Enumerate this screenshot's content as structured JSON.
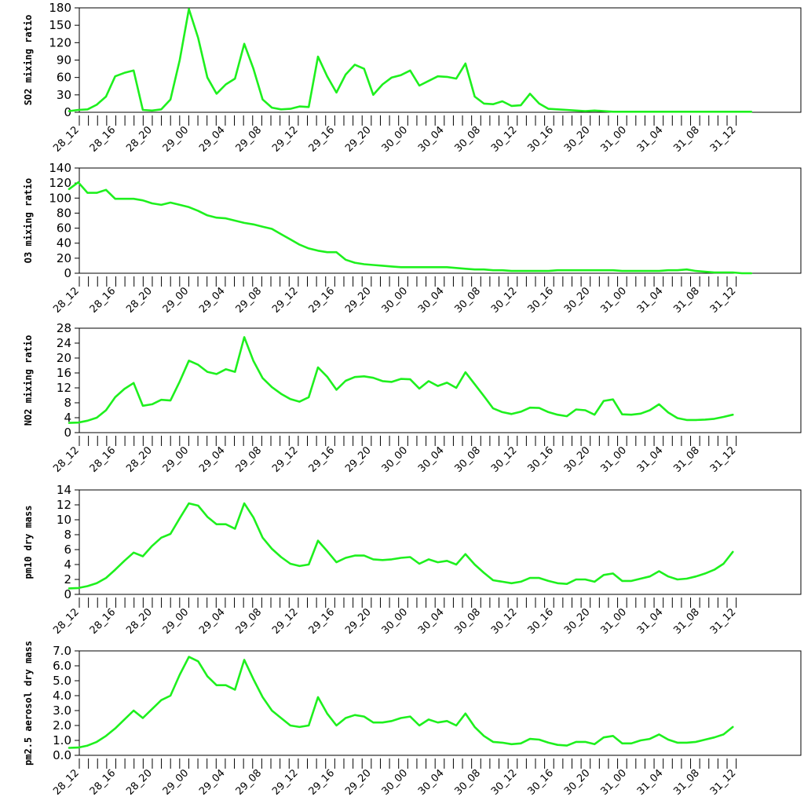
{
  "chart_data": [
    {
      "type": "line",
      "ylabel": "SO2 mixing ratio",
      "ylim": [
        0,
        180
      ],
      "yticks": [
        "0",
        "30",
        "60",
        "90",
        "120",
        "150",
        "180"
      ],
      "x_tick_labels": [
        "28_12",
        "28_16",
        "28_20",
        "29_00",
        "29_04",
        "29_08",
        "29_12",
        "29_16",
        "29_20",
        "30_00",
        "30_04",
        "30_08",
        "30_12",
        "30_16",
        "30_20",
        "31_00",
        "31_04",
        "31_08",
        "31_12"
      ],
      "series": [
        {
          "color": "#1ef01e",
          "values": [
            2,
            4,
            5,
            13,
            27,
            62,
            68,
            72,
            4,
            3,
            5,
            22,
            90,
            178,
            128,
            60,
            32,
            48,
            58,
            118,
            75,
            22,
            8,
            5,
            6,
            10,
            9,
            96,
            62,
            34,
            65,
            82,
            75,
            30,
            48,
            60,
            64,
            72,
            46,
            54,
            62,
            61,
            58,
            84,
            27,
            15,
            14,
            19,
            11,
            12,
            32,
            15,
            6,
            5,
            4,
            3,
            2,
            3,
            2,
            1,
            1,
            1,
            1,
            1,
            1,
            1,
            1,
            1,
            1,
            1,
            1,
            1,
            1,
            1,
            1
          ]
        }
      ]
    },
    {
      "type": "line",
      "ylabel": "O3 mixing ratio",
      "ylim": [
        0,
        140
      ],
      "yticks": [
        "0",
        "20",
        "40",
        "60",
        "80",
        "100",
        "120",
        "140"
      ],
      "x_tick_labels": [
        "28_12",
        "28_16",
        "28_20",
        "29_00",
        "29_04",
        "29_08",
        "29_12",
        "29_16",
        "29_20",
        "30_00",
        "30_04",
        "30_08",
        "30_12",
        "30_16",
        "30_20",
        "31_00",
        "31_04",
        "31_08",
        "31_12"
      ],
      "series": [
        {
          "color": "#1ef01e",
          "values": [
            112,
            121,
            107,
            107,
            111,
            99,
            99,
            99,
            97,
            93,
            91,
            94,
            91,
            88,
            83,
            77,
            74,
            73,
            70,
            67,
            65,
            62,
            59,
            52,
            45,
            38,
            33,
            30,
            28,
            28,
            18,
            14,
            12,
            11,
            10,
            9,
            8,
            8,
            8,
            8,
            8,
            8,
            7,
            6,
            5,
            5,
            4,
            4,
            3,
            3,
            3,
            3,
            3,
            4,
            4,
            4,
            4,
            4,
            4,
            4,
            3,
            3,
            3,
            3,
            3,
            4,
            4,
            5,
            3,
            2,
            1,
            1,
            1,
            0,
            0
          ]
        }
      ]
    },
    {
      "type": "line",
      "ylabel": "NO2 mixing ratio",
      "ylim": [
        0,
        28
      ],
      "yticks": [
        "0",
        "4",
        "8",
        "12",
        "16",
        "20",
        "24",
        "28"
      ],
      "x_tick_labels": [
        "28_12",
        "28_16",
        "28_20",
        "29_00",
        "29_04",
        "29_08",
        "29_12",
        "29_16",
        "29_20",
        "30_00",
        "30_04",
        "30_08",
        "30_12",
        "30_16",
        "30_20",
        "31_00",
        "31_04",
        "31_08",
        "31_12"
      ],
      "series": [
        {
          "color": "#1ef01e",
          "values": [
            2.6,
            2.7,
            3.2,
            4.0,
            6.0,
            9.5,
            11.7,
            13.3,
            7.2,
            7.6,
            8.8,
            8.6,
            13.7,
            19.3,
            18.2,
            16.3,
            15.7,
            17.0,
            16.3,
            25.6,
            19.2,
            14.6,
            12.2,
            10.4,
            9.0,
            8.3,
            9.5,
            17.5,
            15.0,
            11.5,
            13.9,
            14.9,
            15.1,
            14.7,
            13.8,
            13.6,
            14.4,
            14.3,
            11.8,
            13.8,
            12.5,
            13.4,
            12.0,
            16.2,
            13.0,
            9.8,
            6.5,
            5.5,
            5.0,
            5.6,
            6.7,
            6.6,
            5.5,
            4.8,
            4.4,
            6.2,
            6.0,
            4.8,
            8.5,
            8.9,
            4.9,
            4.8,
            5.1,
            6.0,
            7.6,
            5.4,
            3.9,
            3.4,
            3.4,
            3.5,
            3.7,
            4.2,
            4.8
          ]
        }
      ]
    },
    {
      "type": "line",
      "ylabel": "pm10 dry mass",
      "ylim": [
        0,
        14
      ],
      "yticks": [
        "0",
        "2",
        "4",
        "6",
        "8",
        "10",
        "12",
        "14"
      ],
      "x_tick_labels": [
        "28_12",
        "28_16",
        "28_20",
        "29_00",
        "29_04",
        "29_08",
        "29_12",
        "29_16",
        "29_20",
        "30_00",
        "30_04",
        "30_08",
        "30_12",
        "30_16",
        "30_20",
        "31_00",
        "31_04",
        "31_08",
        "31_12"
      ],
      "series": [
        {
          "color": "#1ef01e",
          "values": [
            0.8,
            0.85,
            1.1,
            1.5,
            2.2,
            3.3,
            4.5,
            5.6,
            5.1,
            6.5,
            7.6,
            8.1,
            10.2,
            12.2,
            11.9,
            10.4,
            9.4,
            9.4,
            8.8,
            12.2,
            10.3,
            7.6,
            6.1,
            5.0,
            4.1,
            3.8,
            4.0,
            7.2,
            5.8,
            4.3,
            4.9,
            5.2,
            5.2,
            4.7,
            4.6,
            4.7,
            4.9,
            5.0,
            4.1,
            4.7,
            4.3,
            4.5,
            4.0,
            5.4,
            4.0,
            2.9,
            1.9,
            1.7,
            1.5,
            1.7,
            2.2,
            2.2,
            1.8,
            1.5,
            1.4,
            2.0,
            2.0,
            1.7,
            2.6,
            2.8,
            1.8,
            1.8,
            2.1,
            2.4,
            3.1,
            2.4,
            2.0,
            2.1,
            2.4,
            2.8,
            3.3,
            4.1,
            5.7
          ]
        }
      ]
    },
    {
      "type": "line",
      "ylabel": "pm2.5 aerosol dry mass",
      "ylim": [
        0,
        7
      ],
      "yticks": [
        "0.0",
        "1.0",
        "2.0",
        "3.0",
        "4.0",
        "5.0",
        "6.0",
        "7.0"
      ],
      "x_tick_labels": [
        "28_12",
        "28_16",
        "28_20",
        "29_00",
        "29_04",
        "29_08",
        "29_12",
        "29_16",
        "29_20",
        "30_00",
        "30_04",
        "30_08",
        "30_12",
        "30_16",
        "30_20",
        "31_00",
        "31_04",
        "31_08",
        "31_12"
      ],
      "series": [
        {
          "color": "#1ef01e",
          "values": [
            0.5,
            0.52,
            0.65,
            0.9,
            1.3,
            1.8,
            2.4,
            3.0,
            2.5,
            3.1,
            3.7,
            4.0,
            5.4,
            6.6,
            6.3,
            5.3,
            4.7,
            4.7,
            4.4,
            6.4,
            5.1,
            3.9,
            3.0,
            2.5,
            2.0,
            1.9,
            2.0,
            3.9,
            2.8,
            2.0,
            2.5,
            2.7,
            2.6,
            2.2,
            2.2,
            2.3,
            2.5,
            2.6,
            2.0,
            2.4,
            2.2,
            2.3,
            2.0,
            2.8,
            1.9,
            1.3,
            0.9,
            0.85,
            0.75,
            0.8,
            1.1,
            1.05,
            0.85,
            0.7,
            0.65,
            0.9,
            0.9,
            0.75,
            1.2,
            1.3,
            0.8,
            0.8,
            1.0,
            1.1,
            1.4,
            1.05,
            0.85,
            0.85,
            0.9,
            1.05,
            1.2,
            1.4,
            1.9
          ]
        }
      ]
    }
  ]
}
